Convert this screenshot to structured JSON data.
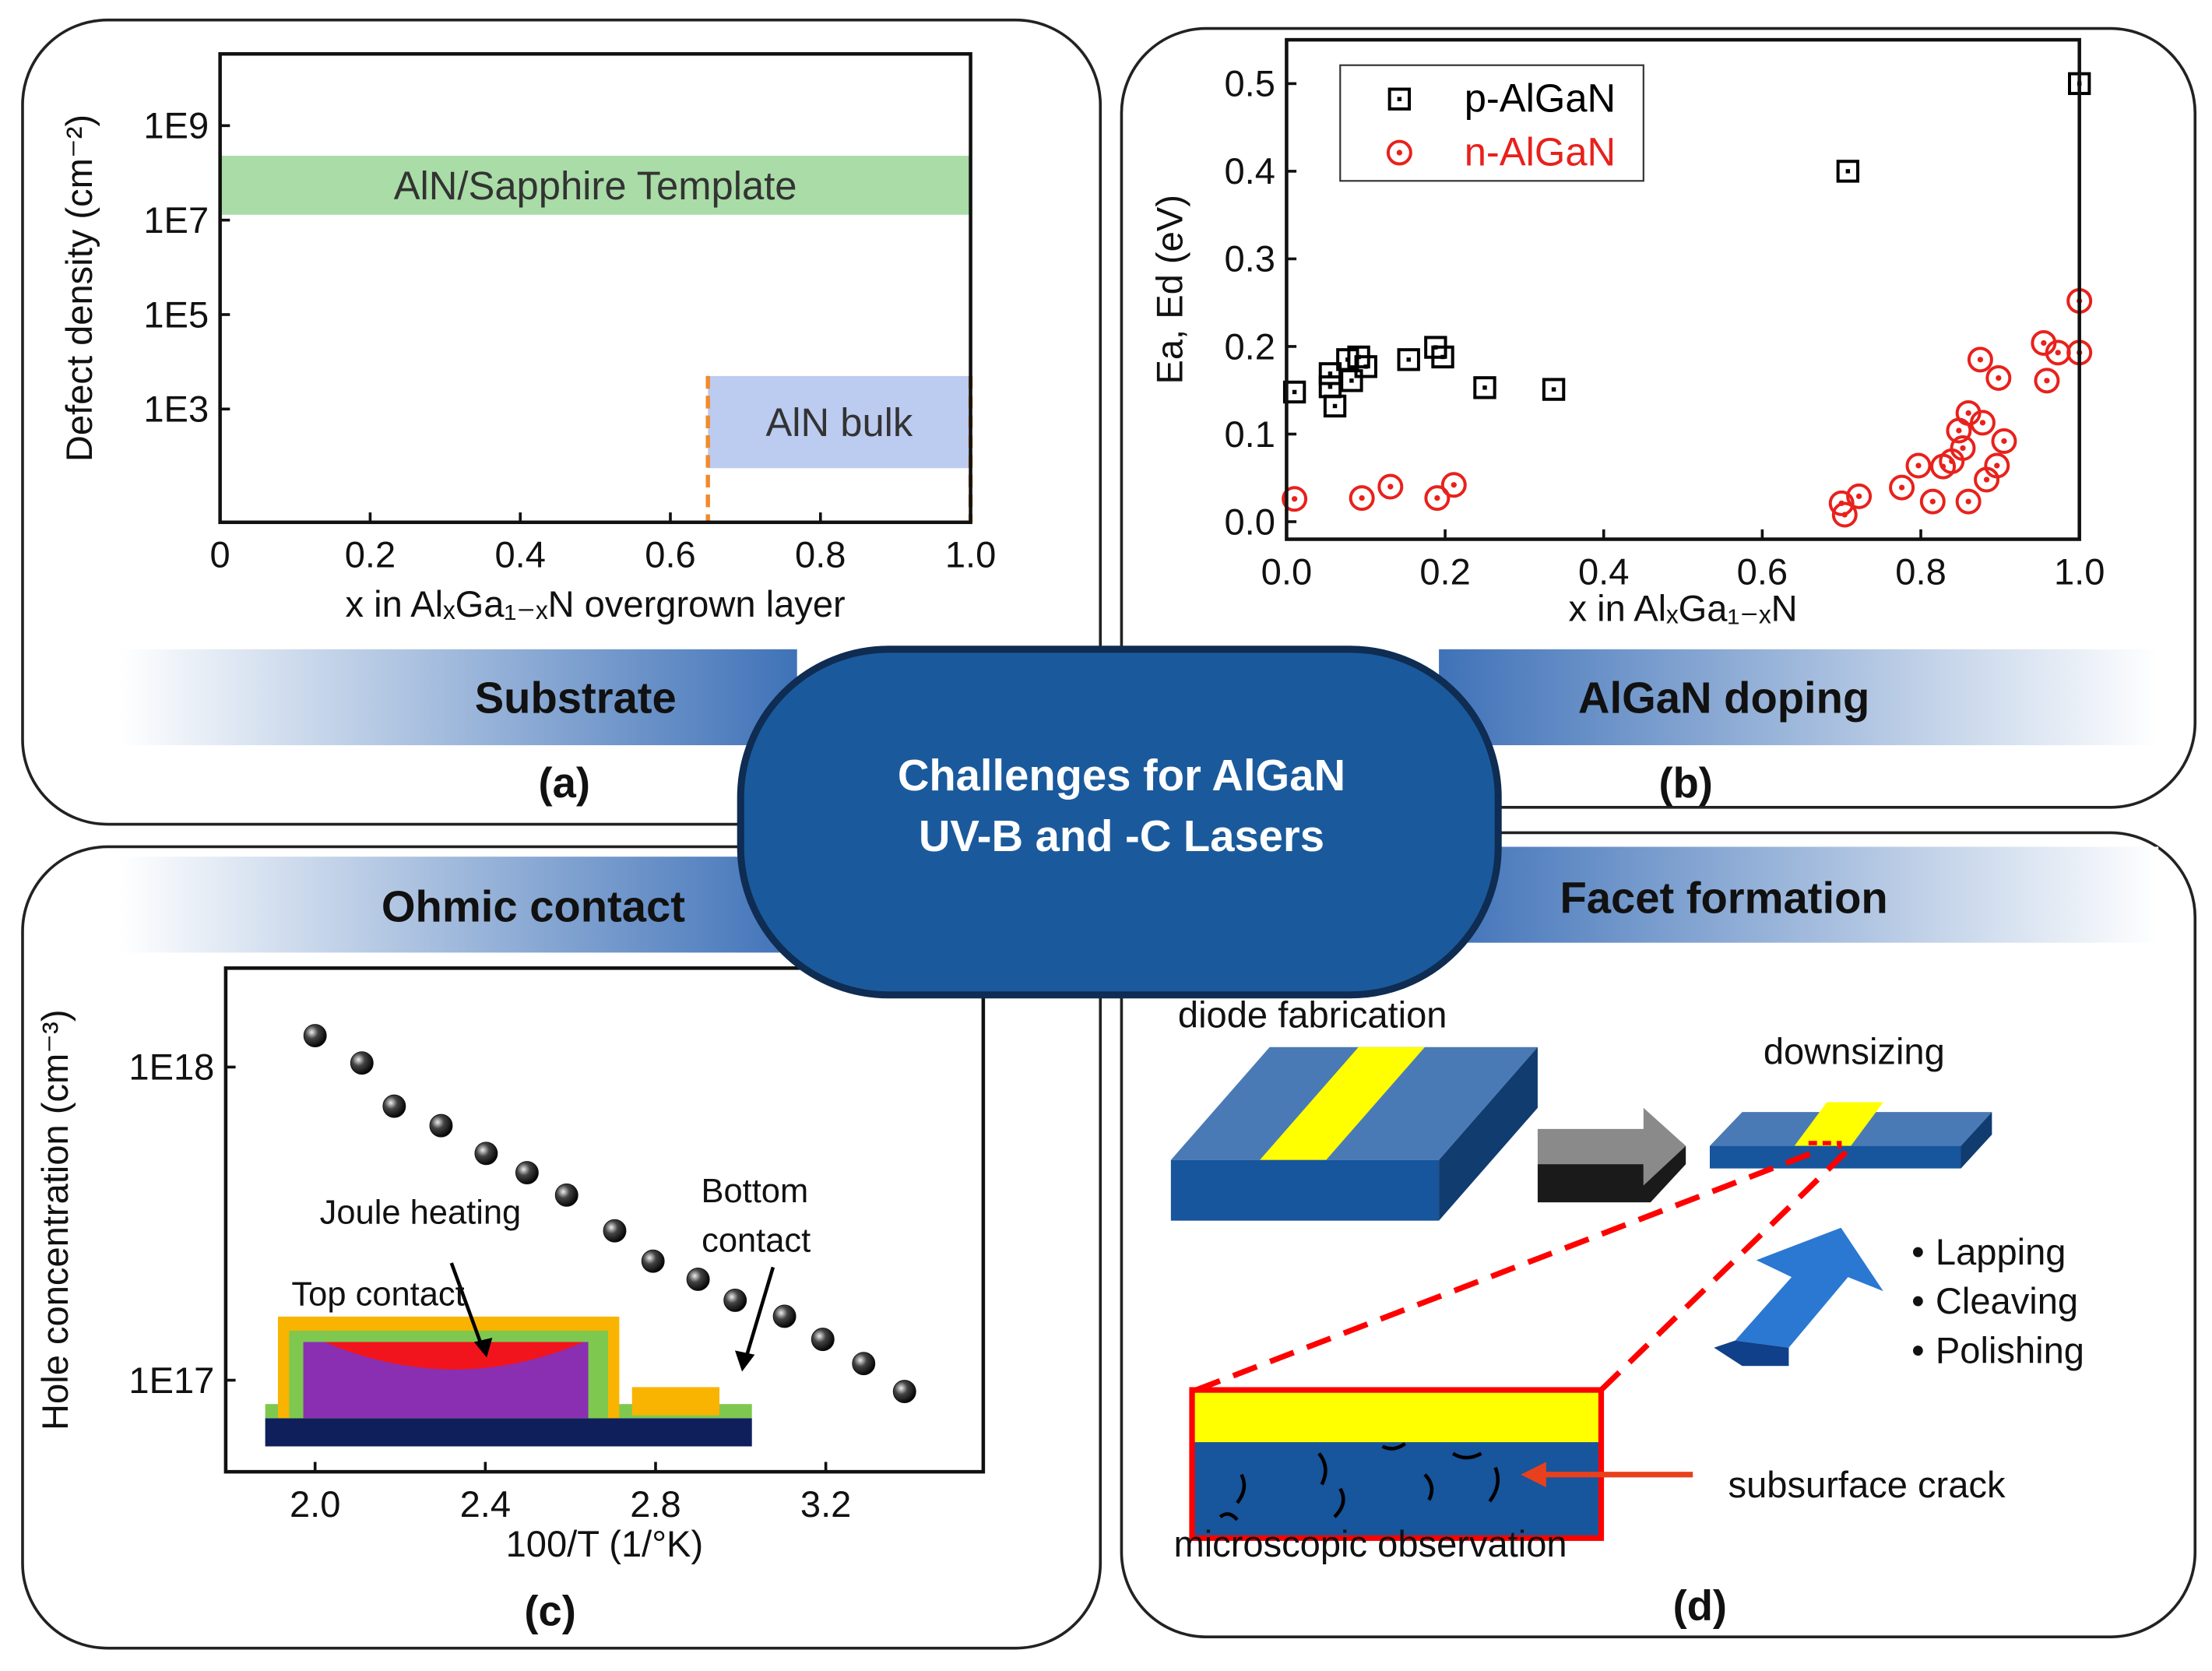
{
  "chart_data": [
    {
      "type": "band",
      "ylabel": "Defect density (cm⁻²)",
      "xlabel": "x in AlₓGa₁₋ₓN overgrown layer",
      "xlim": [
        0,
        1
      ],
      "xticks": [
        0,
        0.2,
        0.4,
        0.6,
        0.8,
        {
          "value": 1,
          "label": "1.0"
        }
      ],
      "ylim": [
        4,
        33000000000
      ],
      "log_y": true,
      "yticks": [
        {
          "value": 1000,
          "label": "1E3"
        },
        {
          "value": 100000,
          "label": "1E5"
        },
        {
          "value": 10000000,
          "label": "1E7"
        },
        {
          "value": 1000000000,
          "label": "1E9"
        }
      ],
      "series": [
        {
          "name": "AlN/Sapphire Template",
          "color": "#a9dca6",
          "x": [
            0,
            1
          ],
          "low": 13000000,
          "high": 230000000
        },
        {
          "name": "AlN bulk",
          "color": "#bccbf0",
          "edge_color": "#f08a2c",
          "x": [
            0.65,
            1
          ],
          "low": 56,
          "high": 5000
        }
      ]
    },
    {
      "type": "scatter",
      "ylabel": "Ea, Ed (eV)",
      "xlabel": "x in AlₓGa₁₋ₓN",
      "xlim": [
        0,
        1
      ],
      "xticks": [
        {
          "value": 0,
          "label": "0.0"
        },
        0.2,
        0.4,
        0.6,
        0.8,
        {
          "value": 1,
          "label": "1.0"
        }
      ],
      "ylim": [
        -0.02,
        0.55
      ],
      "yticks": [
        {
          "value": 0,
          "label": "0.0"
        },
        0.1,
        0.2,
        0.3,
        0.4,
        0.5
      ],
      "legend": "upper left",
      "series": [
        {
          "name": "p-AlGaN",
          "color": "#000000",
          "marker": "square",
          "x": [
            0.01,
            0.055,
            0.061,
            0.055,
            0.077,
            0.082,
            0.091,
            0.1,
            0.154,
            0.188,
            0.197,
            0.25,
            0.337,
            0.708,
            1.0
          ],
          "values": [
            0.148,
            0.169,
            0.132,
            0.154,
            0.185,
            0.161,
            0.188,
            0.177,
            0.185,
            0.199,
            0.188,
            0.153,
            0.151,
            0.4,
            0.5
          ]
        },
        {
          "name": "n-AlGaN",
          "color": "#e8211c",
          "marker": "circle",
          "x": [
            0.01,
            0.095,
            0.131,
            0.19,
            0.211,
            0.7,
            0.704,
            0.722,
            0.776,
            0.797,
            0.815,
            0.828,
            0.839,
            0.848,
            0.853,
            0.86,
            0.86,
            0.875,
            0.878,
            0.883,
            0.896,
            0.898,
            0.905,
            0.955,
            0.959,
            0.973,
            1.0,
            1.0
          ],
          "values": [
            0.026,
            0.027,
            0.04,
            0.027,
            0.042,
            0.021,
            0.008,
            0.029,
            0.039,
            0.064,
            0.023,
            0.063,
            0.069,
            0.104,
            0.084,
            0.124,
            0.023,
            0.185,
            0.113,
            0.048,
            0.064,
            0.164,
            0.092,
            0.204,
            0.161,
            0.193,
            0.252,
            0.193
          ]
        }
      ]
    },
    {
      "type": "scatter",
      "ylabel": "Hole concentration (cm⁻³)",
      "xlabel": "100/T (1/°K)",
      "xlim": [
        1.79,
        3.57
      ],
      "xticks": [
        {
          "value": 2,
          "label": "2.0"
        },
        2.4,
        2.8,
        3.2
      ],
      "ylim": [
        51000000000000000,
        2070000000000000000
      ],
      "log_y": true,
      "yticks": [
        {
          "value": 100000000000000000,
          "label": "1E17"
        },
        {
          "value": 1000000000000000000,
          "label": "1E18"
        }
      ],
      "color": "#111111",
      "marker": "sphere",
      "x": [
        2.0,
        2.11,
        2.186,
        2.296,
        2.402,
        2.498,
        2.591,
        2.704,
        2.794,
        2.9,
        2.987,
        3.103,
        3.193,
        3.289,
        3.385
      ],
      "values": [
        1260000000000000000,
        1030000000000000000,
        750000000000000000,
        650000000000000000,
        530000000000000000,
        460000000000000000,
        390000000000000000,
        300000000000000000,
        240000000000000000,
        210000000000000000,
        180000000000000000,
        160000000000000000,
        135000000000000000,
        113000000000000000,
        92000000000000000
      ],
      "annotations": [
        "Joule heating",
        "Top contact",
        "Bottom",
        "contact"
      ]
    }
  ],
  "panels": [
    {
      "heading": "Substrate",
      "label": "(a)"
    },
    {
      "heading": "AlGaN doping",
      "label": "(b)"
    },
    {
      "heading": "Ohmic contact",
      "label": "(c)"
    },
    {
      "heading": "Facet formation",
      "label": "(d)"
    }
  ],
  "center": {
    "lines": [
      "Challenges for AlGaN",
      "UV-B and -C Lasers"
    ]
  },
  "diagram": {
    "steps": [
      "diode fabrication",
      "downsizing"
    ],
    "methods": [
      "Lapping",
      "Cleaving",
      "Polishing"
    ],
    "crack": "subsurface crack",
    "observation": "microscopic observation"
  }
}
